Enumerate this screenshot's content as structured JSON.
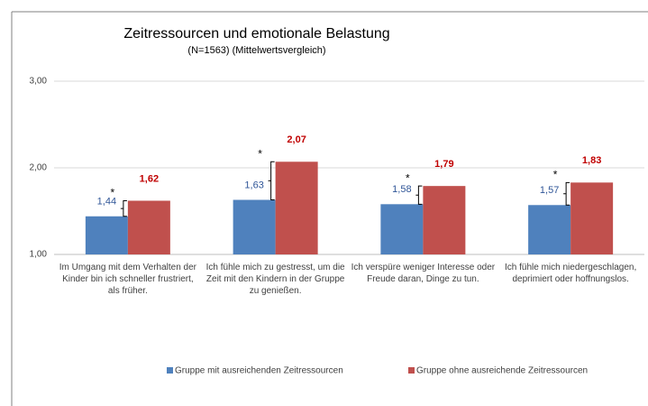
{
  "chart_data": {
    "type": "bar",
    "title": "Zeitressourcen und emotionale Belastung",
    "subtitle": "(N=1563) (Mittelwertsvergleich)",
    "categories": [
      "Im Umgang mit dem Verhalten der Kinder bin ich schneller frustriert, als früher.",
      "Ich fühle mich zu gestresst, um die Zeit mit den Kindern in der Gruppe zu genießen.",
      "Ich verspüre weniger Interesse oder Freude daran, Dinge zu tun.",
      "Ich fühle mich niedergeschlagen, deprimiert oder hoffnungslos."
    ],
    "series": [
      {
        "name": "Gruppe mit ausreichenden Zeitressourcen",
        "color": "#4f81bd",
        "label_color": "#2f5597",
        "values": [
          1.44,
          1.63,
          1.58,
          1.57
        ],
        "value_labels": [
          "1,44",
          "1,63",
          "1,58",
          "1,57"
        ]
      },
      {
        "name": "Gruppe ohne ausreichende Zeitressourcen",
        "color": "#c0504d",
        "label_color": "#c00000",
        "values": [
          1.62,
          2.07,
          1.79,
          1.83
        ],
        "value_labels": [
          "1,62",
          "2,07",
          "1,79",
          "1,83"
        ]
      }
    ],
    "significance_labels": [
      "*",
      "*",
      "*",
      "*"
    ],
    "ylim": [
      1,
      3
    ],
    "yticks": [
      {
        "value": 1,
        "label": "1,00"
      },
      {
        "value": 2,
        "label": "2,00"
      },
      {
        "value": 3,
        "label": "3,00"
      }
    ],
    "grid": true,
    "legend": "bottom"
  }
}
